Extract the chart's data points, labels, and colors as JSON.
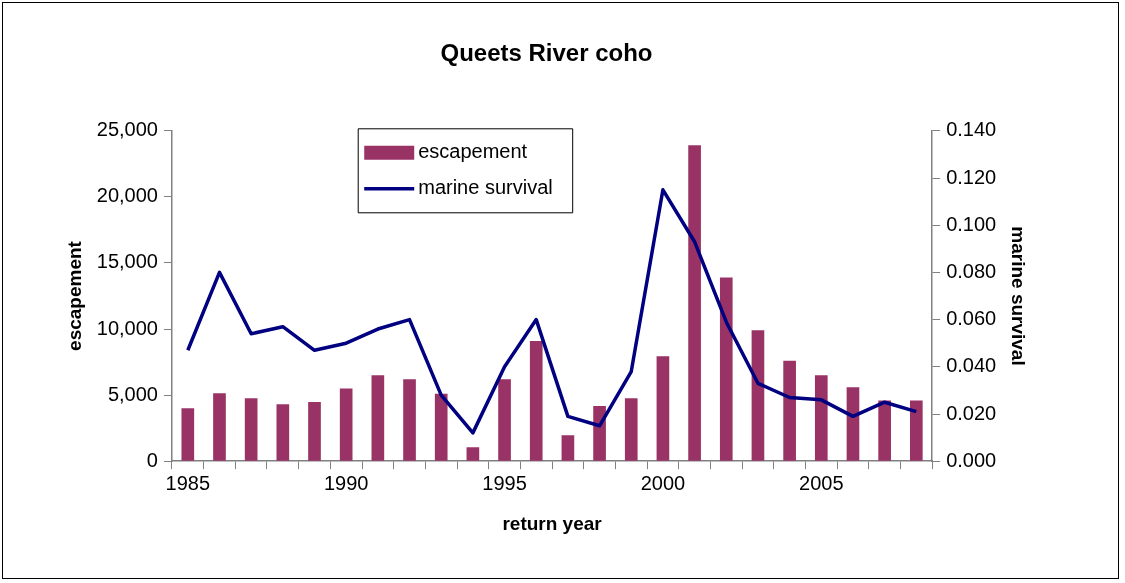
{
  "chart_data": {
    "type": "bar",
    "title": "Queets River coho",
    "xlabel": "return year",
    "ylabel": "escapement",
    "y2label": "marine survival",
    "categories": [
      "1985",
      null,
      null,
      null,
      null,
      "1990",
      null,
      null,
      null,
      null,
      "1995",
      null,
      null,
      null,
      null,
      "2000",
      null,
      null,
      null,
      null,
      "2005",
      null,
      null,
      null
    ],
    "series": [
      {
        "name": "escapement",
        "color": "#993366",
        "values": [
          4000,
          5150,
          4770,
          4300,
          4470,
          5500,
          6500,
          6200,
          5100,
          1050,
          6200,
          9100,
          1970,
          4170,
          4770,
          7950,
          23900,
          13900,
          9900,
          7600,
          6500,
          5600,
          4600,
          4600
        ]
      },
      {
        "name": "marine survival",
        "type": "line",
        "axis": "y2",
        "color": "#000080",
        "values": [
          0.047,
          0.08,
          0.054,
          0.057,
          0.047,
          0.05,
          0.056,
          0.06,
          0.028,
          0.012,
          0.04,
          0.06,
          0.019,
          0.015,
          0.038,
          0.115,
          0.093,
          0.059,
          0.033,
          0.027,
          0.026,
          0.019,
          0.025,
          0.021
        ]
      }
    ],
    "ylim": [
      0,
      25000
    ],
    "yticks": [
      {
        "value": 0,
        "label": "0"
      },
      {
        "value": 5000,
        "label": "5,000"
      },
      {
        "value": 10000,
        "label": "10,000"
      },
      {
        "value": 15000,
        "label": "15,000"
      },
      {
        "value": 20000,
        "label": "20,000"
      },
      {
        "value": 25000,
        "label": "25,000"
      }
    ],
    "y2lim": [
      0,
      0.14
    ],
    "y2ticks": [
      {
        "value": 0,
        "label": "0.000"
      },
      {
        "value": 0.02,
        "label": "0.020"
      },
      {
        "value": 0.04,
        "label": "0.040"
      },
      {
        "value": 0.06,
        "label": "0.060"
      },
      {
        "value": 0.08,
        "label": "0.080"
      },
      {
        "value": 0.1,
        "label": "0.100"
      },
      {
        "value": 0.12,
        "label": "0.120"
      },
      {
        "value": 0.14,
        "label": "0.140"
      }
    ],
    "legend": "top",
    "grid": false,
    "marker": "none"
  }
}
